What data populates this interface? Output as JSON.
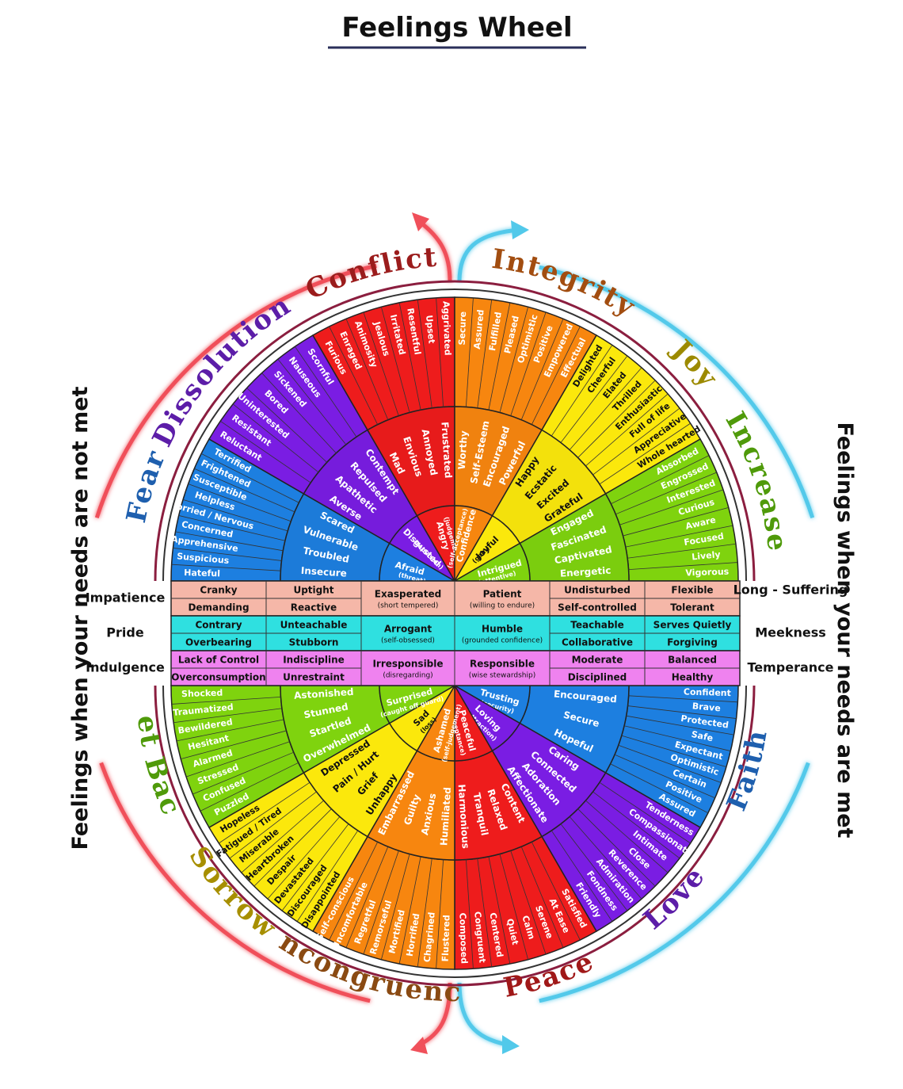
{
  "title": "Feelings Wheel",
  "side_left": "Feelings when your needs are not met",
  "side_right": "Feelings when your needs are met",
  "colors": {
    "red": "#ee1c1c",
    "orange": "#f7860f",
    "yellow": "#fbe80c",
    "green": "#7fd30e",
    "blue": "#1d7fe0",
    "purple": "#7a1de3",
    "pink_band": "#f5b7a8",
    "cyan_band": "#2fe0e0",
    "magenta_band": "#ef82ef",
    "arc_red": "#f0505a",
    "arc_blue": "#52c9ea"
  },
  "categories_top": [
    {
      "label": "Conflict",
      "color": "#9b1c1c"
    },
    {
      "label": "Integrity",
      "color": "#a24d10"
    },
    {
      "label": "Joy",
      "color": "#9c8a00"
    },
    {
      "label": "Increase",
      "color": "#4f9a0a"
    },
    {
      "label": "Fear",
      "color": "#1e5fae"
    },
    {
      "label": "Dissolution",
      "color": "#5c1da8"
    }
  ],
  "categories_bottom": [
    {
      "label": "Set Back",
      "color": "#4f9a0a"
    },
    {
      "label": "Sorrow",
      "color": "#a78f00"
    },
    {
      "label": "Incongruence",
      "color": "#8a4a12"
    },
    {
      "label": "Peace",
      "color": "#a01818"
    },
    {
      "label": "Love",
      "color": "#5c1da8"
    },
    {
      "label": "Faith",
      "color": "#1e5fae"
    }
  ],
  "top_sectors": [
    {
      "color": "#1d7fe0",
      "core": "Afraid",
      "core_sub": "(threat)",
      "middle": [
        "Insecure",
        "Troubled",
        "Vulnerable",
        "Scared"
      ],
      "outer": [
        "Hateful",
        "Suspicious",
        "Apprehensive",
        "Concerned",
        "Worried / Nervous",
        "Helpless",
        "Susceptible",
        "Frightened",
        "Terrified"
      ]
    },
    {
      "color": "#7a1de3",
      "core": "Disgusted",
      "core_sub": "(repulsion)",
      "middle": [
        "Averse",
        "Apathetic",
        "Repulsed",
        "Contempt"
      ],
      "outer": [
        "Reluctant",
        "Resistant",
        "Uninterested",
        "Bored",
        "Sickened",
        "Nauseous",
        "Scornful"
      ]
    },
    {
      "color": "#ee1c1c",
      "core": "Angry",
      "core_sub": "(judgement)",
      "middle": [
        "Mad",
        "Envious",
        "Annoyed",
        "Frustrated"
      ],
      "outer": [
        "Furious",
        "Enraged",
        "Animosity",
        "Jealous",
        "Irritated",
        "Resentful",
        "Upset",
        "Aggrivated"
      ]
    },
    {
      "color": "#f7860f",
      "core": "Confidence",
      "core_sub": "(self-acceptance)",
      "middle": [
        "Worthy",
        "Self-Esteem",
        "Encouraged",
        "Powerful"
      ],
      "outer": [
        "Secure",
        "Assured",
        "Fulfilled",
        "Pleased",
        "Optimistic",
        "Positive",
        "Empowered",
        "Effectual"
      ]
    },
    {
      "color": "#fbe80c",
      "core": "Joyful",
      "core_sub": "(gain)",
      "middle": [
        "Happy",
        "Ecstatic",
        "Excited",
        "Grateful"
      ],
      "outer": [
        "Delighted",
        "Cheerful",
        "Elated",
        "Thrilled",
        "Enthusiastic",
        "Full of life",
        "Appreciative",
        "Whole hearted"
      ]
    },
    {
      "color": "#7fd30e",
      "core": "Intrigued",
      "core_sub": "(attentive)",
      "middle": [
        "Engaged",
        "Fascinated",
        "Captivated",
        "Energetic"
      ],
      "outer": [
        "Absorbed",
        "Engrossed",
        "Interested",
        "Curious",
        "Aware",
        "Focused",
        "Lively",
        "Vigorous"
      ]
    }
  ],
  "bottom_sectors": [
    {
      "color": "#7fd30e",
      "core": "Surprised",
      "core_sub": "(caught off guard)",
      "middle": [
        "Astonished",
        "Stunned",
        "Startled",
        "Overwhelmed"
      ],
      "outer": [
        "Shocked",
        "Traumatized",
        "Bewildered",
        "Hesitant",
        "Alarmed",
        "Stressed",
        "Confused",
        "Puzzled"
      ]
    },
    {
      "color": "#fbe80c",
      "core": "Sad",
      "core_sub": "(loss)",
      "middle": [
        "Depressed",
        "Pain / Hurt",
        "Grief",
        "Unhappy"
      ],
      "outer": [
        "Hopeless",
        "Fatigued / Tired",
        "Miserable",
        "Heartbroken",
        "Despair",
        "Devastated",
        "Discouraged",
        "Disappointed"
      ]
    },
    {
      "color": "#f7860f",
      "core": "Ashamed",
      "core_sub": "(self-judgement)",
      "middle": [
        "Embarrassed",
        "Guilty",
        "Anxious",
        "Humiliated"
      ],
      "outer": [
        "Self-conscious",
        "Uncomfortable",
        "Regretful",
        "Remorseful",
        "Mortified",
        "Horrified",
        "Chagrined",
        "Flustered"
      ]
    },
    {
      "color": "#ee1c1c",
      "core": "Peaceful",
      "core_sub": "(acceptance)",
      "middle": [
        "Harmonious",
        "Tranquil",
        "Relaxed",
        "Content"
      ],
      "outer": [
        "Composed",
        "Congruent",
        "Centered",
        "Quiet",
        "Calm",
        "Serene",
        "At Ease",
        "Satisfied"
      ]
    },
    {
      "color": "#7a1de3",
      "core": "Loving",
      "core_sub": "(attraction)",
      "middle": [
        "Affectionate",
        "Adoration",
        "Connected",
        "Caring"
      ],
      "outer": [
        "Friendly",
        "Fondness",
        "Admiration",
        "Reverence",
        "Close",
        "Intimate",
        "Compassionate",
        "Tenderness"
      ]
    },
    {
      "color": "#1d7fe0",
      "core": "Trusting",
      "core_sub": "(security)",
      "middle": [
        "Hopeful",
        "Secure",
        "Encouraged"
      ],
      "outer": [
        "Assured",
        "Positive",
        "Certain",
        "Optimistic",
        "Expectant",
        "Safe",
        "Protected",
        "Brave",
        "Confident"
      ]
    }
  ],
  "bands": [
    {
      "left": "Impatience",
      "right": "Long - Suffering",
      "color": "#f5b7a8",
      "rows": [
        [
          "Cranky",
          "Uptight",
          "",
          "",
          "Undisturbed",
          "Flexible"
        ],
        [
          "Demanding",
          "Reactive",
          "",
          "",
          "Self-controlled",
          "Tolerant"
        ]
      ],
      "center_left": {
        "main": "Exasperated",
        "sub": "(short tempered)"
      },
      "center_right": {
        "main": "Patient",
        "sub": "(willing to endure)"
      }
    },
    {
      "left": "Pride",
      "right": "Meekness",
      "color": "#2fe0e0",
      "rows": [
        [
          "Contrary",
          "Unteachable",
          "",
          "",
          "Teachable",
          "Serves Quietly"
        ],
        [
          "Overbearing",
          "Stubborn",
          "",
          "",
          "Collaborative",
          "Forgiving"
        ]
      ],
      "center_left": {
        "main": "Arrogant",
        "sub": "(self-obsessed)"
      },
      "center_right": {
        "main": "Humble",
        "sub": "(grounded confidence)"
      }
    },
    {
      "left": "Indulgence",
      "right": "Temperance",
      "color": "#ef82ef",
      "rows": [
        [
          "Lack of Control",
          "Indiscipline",
          "",
          "",
          "Moderate",
          "Balanced"
        ],
        [
          "Overconsumption",
          "Unrestraint",
          "",
          "",
          "Disciplined",
          "Healthy"
        ]
      ],
      "center_left": {
        "main": "Irresponsible",
        "sub": "(disregarding)"
      },
      "center_right": {
        "main": "Responsible",
        "sub": "(wise stewardship)"
      }
    }
  ]
}
